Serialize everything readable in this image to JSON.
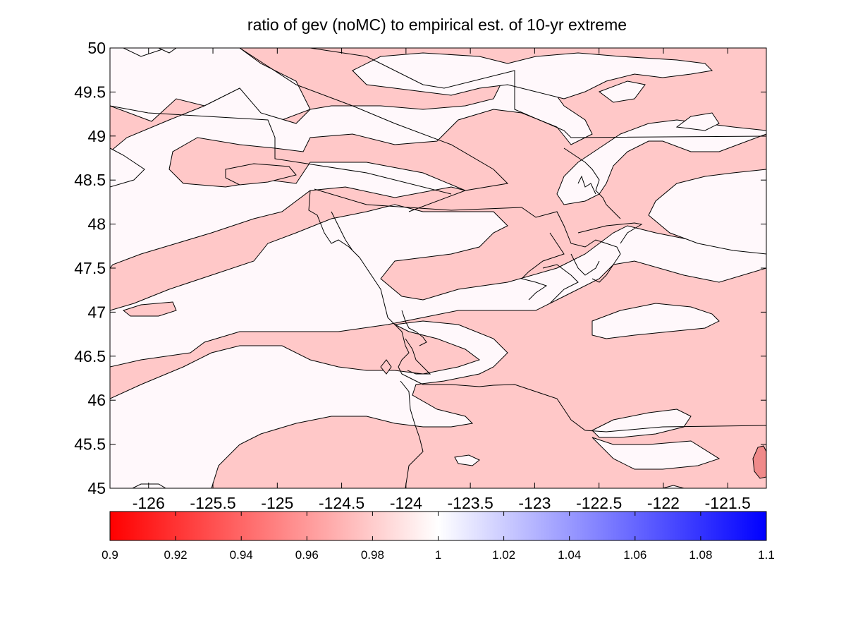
{
  "chart_data": {
    "type": "heatmap",
    "title": "ratio of gev (noMC) to empirical est. of 10-yr extreme",
    "xlabel": "",
    "ylabel": "",
    "xlim": [
      -126.3,
      -121.2
    ],
    "ylim": [
      45,
      50
    ],
    "x_tick_labels": [
      "-126",
      "-125.5",
      "-125",
      "-124.5",
      "-124",
      "-123.5",
      "-123",
      "-122.5",
      "-122",
      "-121.5"
    ],
    "x_ticks": [
      -126,
      -125.5,
      -125,
      -124.5,
      -124,
      -123.5,
      -123,
      -122.5,
      -122,
      -121.5
    ],
    "y_tick_labels": [
      "45",
      "45.5",
      "46",
      "46.5",
      "47",
      "47.5",
      "48",
      "48.5",
      "49",
      "49.5",
      "50"
    ],
    "y_ticks": [
      45,
      45.5,
      46,
      46.5,
      47,
      47.5,
      48,
      48.5,
      49,
      49.5,
      50
    ],
    "colorbar": {
      "clim": [
        0.9,
        1.1
      ],
      "tick_labels": [
        "0.9",
        "0.92",
        "0.94",
        "0.96",
        "0.98",
        "1",
        "1.02",
        "1.04",
        "1.06",
        "1.08",
        "1.1"
      ],
      "ticks": [
        0.9,
        0.92,
        0.94,
        0.96,
        0.98,
        1.0,
        1.02,
        1.04,
        1.06,
        1.08,
        1.1
      ],
      "colormap": [
        "#ff0000",
        "#ffffff",
        "#0000ff"
      ]
    },
    "contour_levels": [
      0.97,
      0.99,
      1.0
    ],
    "level_colors": [
      "#f08a8a",
      "#ffc8c8",
      "#fff8fb"
    ],
    "grid": false,
    "has_coastline_overlay": true
  },
  "colors": {
    "background": "#ffffff",
    "axes_background": "#fff8fb",
    "pink_region": "#ffc8c8",
    "darker_spot": "#f08a8a",
    "outline": "#000000"
  }
}
